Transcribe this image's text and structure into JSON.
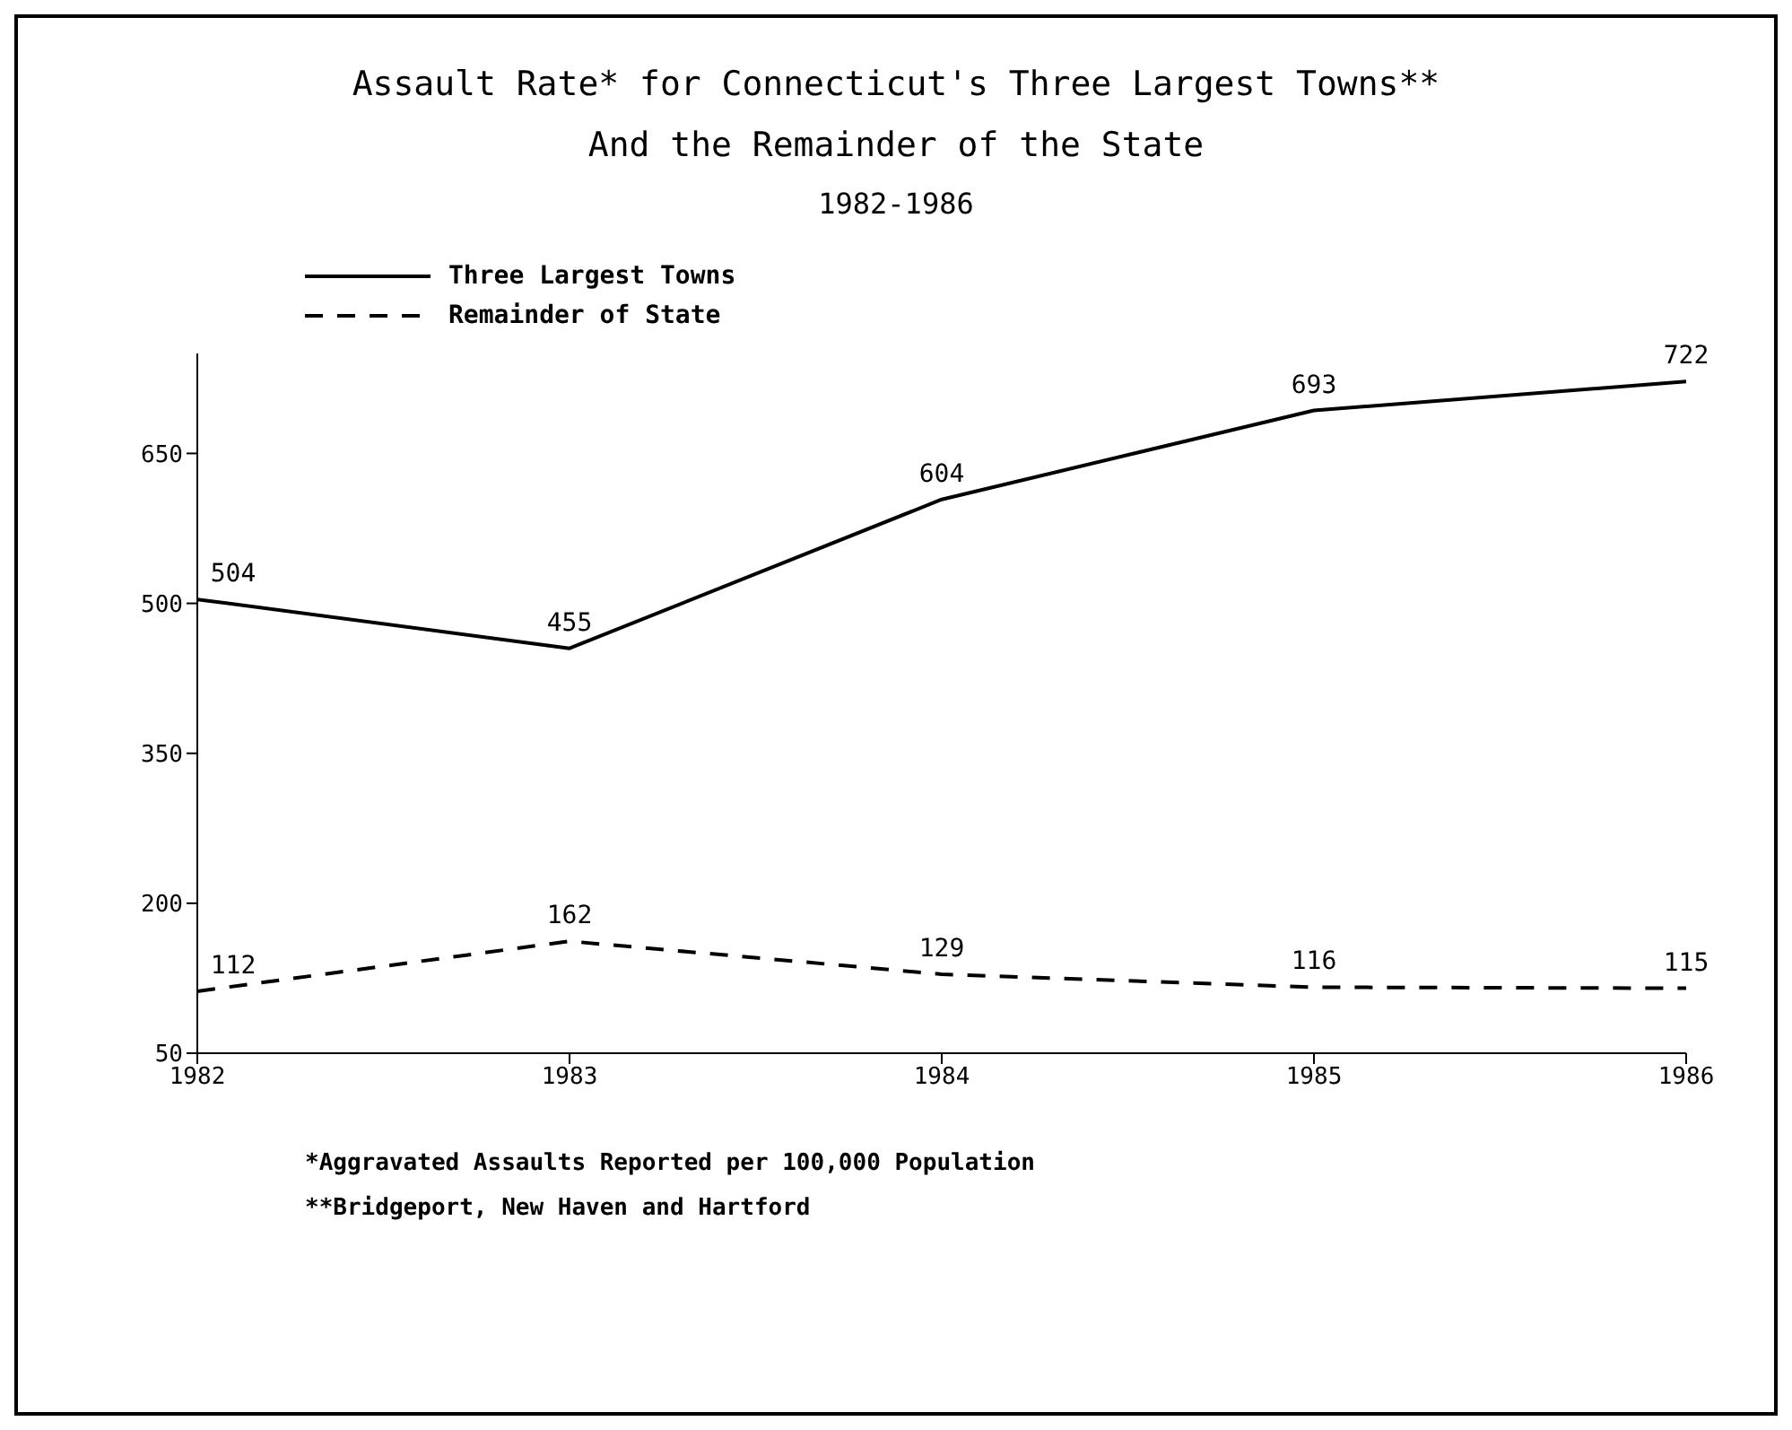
{
  "chart_data": {
    "type": "line",
    "title": "Assault Rate* for Connecticut's Three Largest Towns**",
    "subtitle": "And the Remainder of the State\n1982-1986",
    "x": [
      1982,
      1983,
      1984,
      1985,
      1986
    ],
    "series": [
      {
        "name": "Three Largest Towns",
        "color": "#000000",
        "line_style": "solid",
        "values": [
          504,
          455,
          604,
          693,
          722
        ]
      },
      {
        "name": "Remainder of State",
        "color": "#000000",
        "line_style": "dashed",
        "values": [
          112,
          162,
          129,
          116,
          115
        ]
      }
    ],
    "xlim": [
      1982,
      1986
    ],
    "xticks": [
      1982,
      1983,
      1984,
      1985,
      1986
    ],
    "ylim": [
      50,
      750
    ],
    "yticks": [
      50,
      200,
      350,
      500,
      650
    ],
    "grid": false,
    "legend": "top left",
    "marker": "none",
    "data_labels": true,
    "annotations": [
      "*Aggravated Assaults Reported per 100,000 Population",
      "**Bridgeport, New Haven and Hartford"
    ]
  }
}
